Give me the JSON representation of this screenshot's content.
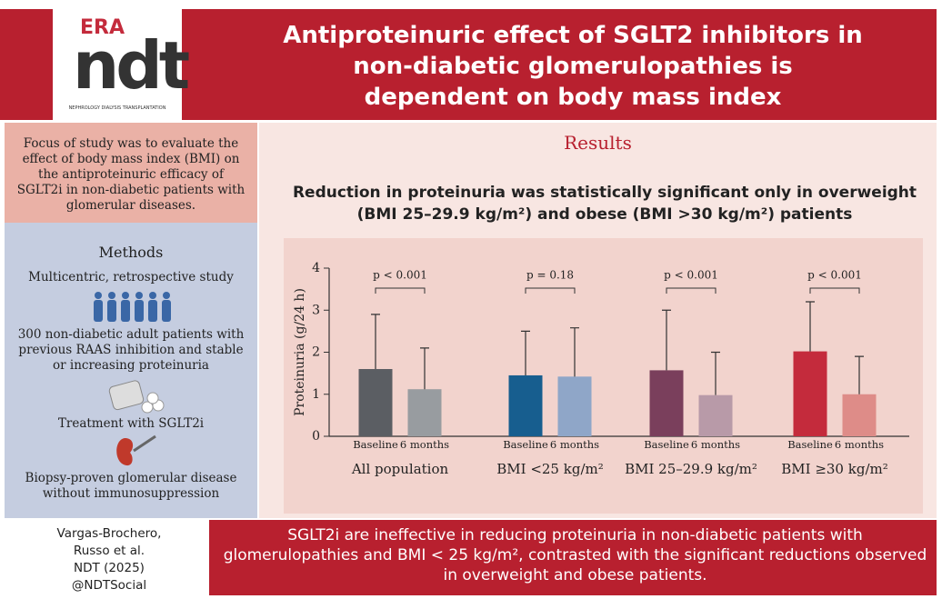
{
  "header": {
    "logo": {
      "era": "ERA",
      "ndt": "ndt",
      "subtitle": "NEPHROLOGY DIALYSIS TRANSPLANTATION"
    },
    "title": "Antiproteinuric effect of SGLT2 inhibitors in non-diabetic glomerulopathies is dependent on body mass index"
  },
  "left_panel": {
    "focus": "Focus of study was to evaluate the effect of body mass index (BMI) on the antiproteinuric efficacy of SGLT2i in non-diabetic patients with glomerular diseases.",
    "methods_title": "Methods",
    "methods": [
      "Multicentric, retrospective study",
      "300 non-diabetic adult patients with previous RAAS inhibition and stable or increasing proteinuria",
      "Treatment with SGLT2i",
      "Biopsy-proven glomerular disease without immunosuppression"
    ]
  },
  "results": {
    "title": "Results",
    "subtitle": "Reduction in proteinuria was statistically significant only in overweight (BMI 25–29.9 kg/m²) and obese (BMI >30 kg/m²) patients"
  },
  "chart_data": {
    "type": "bar",
    "ylabel": "Proteinuria (g/24 h)",
    "categories": [
      "All population",
      "BMI <25 kg/m²",
      "BMI 25–29.9 kg/m²",
      "BMI ≥30 kg/m²"
    ],
    "p_values": [
      "p < 0.001",
      "p = 0.18",
      "p < 0.001",
      "p < 0.001"
    ],
    "series": [
      {
        "name": "Baseline",
        "colors": [
          "#5b5e63",
          "#175e8f",
          "#7a3f5c",
          "#c42b3c"
        ],
        "values": [
          1.6,
          1.45,
          1.57,
          2.02
        ],
        "errors": [
          1.3,
          1.05,
          1.43,
          1.18
        ]
      },
      {
        "name": "6 months",
        "colors": [
          "#989ca0",
          "#8fa6c8",
          "#b89aa8",
          "#de8c88"
        ],
        "values": [
          1.12,
          1.42,
          0.98,
          1.0
        ],
        "errors": [
          0.98,
          1.16,
          1.02,
          0.9
        ]
      }
    ],
    "ylim": [
      0,
      4
    ],
    "yticks": [
      0,
      1,
      2,
      3,
      4
    ],
    "grid": false
  },
  "footer": {
    "citation": [
      "Vargas-Brochero,",
      "Russo et al.",
      "NDT (2025)",
      "@NDTSocial"
    ],
    "conclusion": "SGLT2i are ineffective in reducing proteinuria in non-diabetic patients with glomerulopathies and BMI < 25 kg/m², contrasted with the significant reductions observed in overweight and obese patients."
  }
}
